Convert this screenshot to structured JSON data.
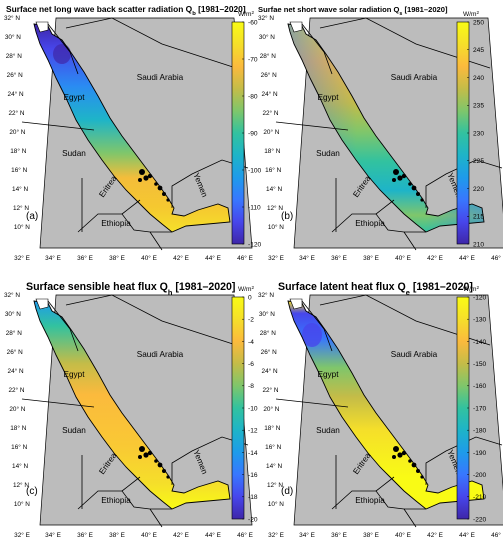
{
  "colors": {
    "land": "#bcbcbc",
    "coast": "#000000",
    "parula": [
      "#3e26a8",
      "#4746eb",
      "#3877fe",
      "#1e9bea",
      "#1eb4c8",
      "#32c29f",
      "#7fc66b",
      "#c4bc48",
      "#fbba3d",
      "#f5df2a",
      "#f9fb15"
    ]
  },
  "shared": {
    "lat_labels": [
      "32° N",
      "30° N",
      "28° N",
      "26° N",
      "24° N",
      "22° N",
      "20° N",
      "18° N",
      "16° N",
      "14° N",
      "12° N",
      "10° N"
    ],
    "lon_labels": [
      "32° E",
      "34° E",
      "36° E",
      "38° E",
      "40° E",
      "42° E",
      "44° E",
      "46° E"
    ],
    "countries": [
      "Egypt",
      "Saudi Arabia",
      "Sudan",
      "Eritrea",
      "Ethiopia",
      "Yemen"
    ]
  },
  "panels": [
    {
      "id": "a",
      "label": "(a)",
      "title_pre": "Surface net long wave back scatter radiation Q",
      "title_sub": "b",
      "title_post": " [1981–2020]",
      "unit_base": "W/m",
      "unit_sup": "2",
      "colorbar_ticks": [
        "-60",
        "-70",
        "-80",
        "-90",
        "-100",
        "-110",
        "-120"
      ],
      "colorbar_range": [
        -120,
        -60
      ],
      "pattern": "a"
    },
    {
      "id": "b",
      "label": "(b)",
      "title_pre": "Surfae net short wave solar radiation Q",
      "title_sub": "s",
      "title_post": " [1981–2020]",
      "unit_base": "W/m",
      "unit_sup": "2",
      "colorbar_ticks": [
        "250",
        "245",
        "240",
        "235",
        "230",
        "225",
        "220",
        "215",
        "210"
      ],
      "colorbar_range": [
        210,
        250
      ],
      "pattern": "b"
    },
    {
      "id": "c",
      "label": "(c)",
      "title_pre": "Surface sensible heat flux Q",
      "title_sub": "h",
      "title_post": " [1981–2020]",
      "unit_base": "W/m",
      "unit_sup": "2",
      "colorbar_ticks": [
        "0",
        "-2",
        "-4",
        "-6",
        "-8",
        "-10",
        "-12",
        "-14",
        "-16",
        "-18",
        "-20"
      ],
      "colorbar_range": [
        -20,
        0
      ],
      "pattern": "c"
    },
    {
      "id": "d",
      "label": "(d)",
      "title_pre": "Surface latent heat flux Q",
      "title_sub": "e",
      "title_post": " [1981–2020]",
      "unit_base": "W/m",
      "unit_sup": "2",
      "colorbar_ticks": [
        "-120",
        "-130",
        "-140",
        "-150",
        "-160",
        "-170",
        "-180",
        "-190",
        "-200",
        "-210",
        "-220"
      ],
      "colorbar_range": [
        -220,
        -120
      ],
      "pattern": "d"
    }
  ]
}
